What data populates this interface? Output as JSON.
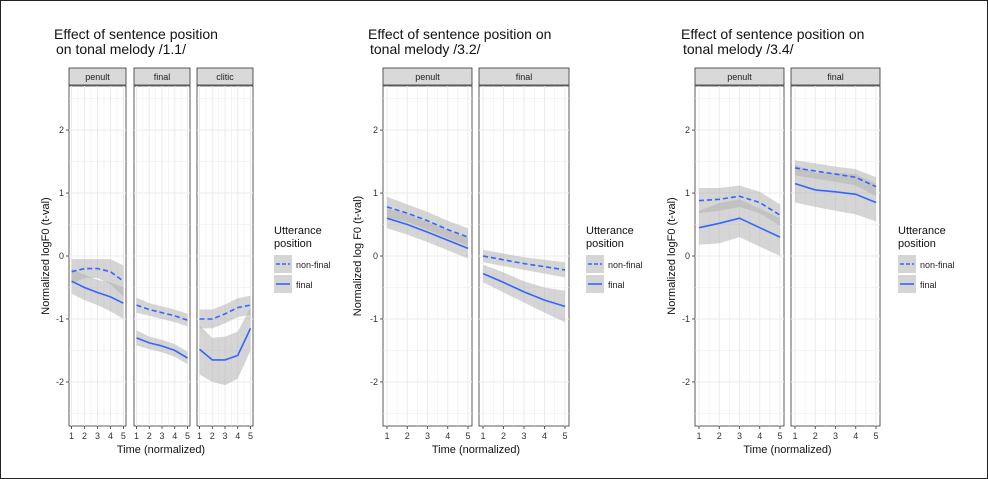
{
  "colors": {
    "line": "#3366ff",
    "ribbon": "#b3b3b3",
    "strip": "#d9d9d9",
    "panel": "#ffffff",
    "grid": "#ebebeb"
  },
  "legend": {
    "title_line1": "Utterance",
    "title_line2": "position",
    "items": [
      {
        "label": "non-final",
        "linetype": "dashed"
      },
      {
        "label": "final",
        "linetype": "solid"
      }
    ]
  },
  "chart_data": [
    {
      "type": "line",
      "title_line1": "Effect of sentence position",
      "title_line2": "on tonal melody /1.1/",
      "ylabel": "Normalized logF0 (t-val)",
      "xlabel": "Time (normalized)",
      "ylim": [
        -2.7,
        2.7
      ],
      "yticks": [
        -2,
        -1,
        0,
        1,
        2
      ],
      "xticks": [
        1,
        2,
        3,
        4,
        5
      ],
      "grid": true,
      "facets": [
        {
          "label": "penult",
          "series": [
            {
              "name": "non-final",
              "x": [
                1,
                2,
                3,
                4,
                5
              ],
              "y": [
                -0.25,
                -0.2,
                -0.2,
                -0.25,
                -0.4
              ],
              "lower": [
                -0.45,
                -0.35,
                -0.35,
                -0.45,
                -0.65
              ],
              "upper": [
                -0.05,
                -0.05,
                -0.05,
                -0.05,
                -0.15
              ]
            },
            {
              "name": "final",
              "x": [
                1,
                2,
                3,
                4,
                5
              ],
              "y": [
                -0.4,
                -0.5,
                -0.58,
                -0.65,
                -0.75
              ],
              "lower": [
                -0.6,
                -0.7,
                -0.78,
                -0.88,
                -1.0
              ],
              "upper": [
                -0.2,
                -0.3,
                -0.38,
                -0.42,
                -0.5
              ]
            }
          ]
        },
        {
          "label": "final",
          "series": [
            {
              "name": "non-final",
              "x": [
                1,
                2,
                3,
                4,
                5
              ],
              "y": [
                -0.78,
                -0.85,
                -0.9,
                -0.95,
                -1.02
              ],
              "lower": [
                -0.9,
                -0.95,
                -1.0,
                -1.05,
                -1.12
              ],
              "upper": [
                -0.66,
                -0.75,
                -0.8,
                -0.85,
                -0.92
              ]
            },
            {
              "name": "final",
              "x": [
                1,
                2,
                3,
                4,
                5
              ],
              "y": [
                -1.3,
                -1.38,
                -1.43,
                -1.5,
                -1.62
              ],
              "lower": [
                -1.42,
                -1.48,
                -1.53,
                -1.6,
                -1.72
              ],
              "upper": [
                -1.18,
                -1.28,
                -1.33,
                -1.4,
                -1.52
              ]
            }
          ]
        },
        {
          "label": "clitic",
          "series": [
            {
              "name": "non-final",
              "x": [
                1,
                2,
                3,
                4,
                5
              ],
              "y": [
                -1.0,
                -1.0,
                -0.92,
                -0.82,
                -0.78
              ],
              "lower": [
                -1.15,
                -1.15,
                -1.07,
                -0.97,
                -0.93
              ],
              "upper": [
                -0.85,
                -0.85,
                -0.77,
                -0.67,
                -0.63
              ]
            },
            {
              "name": "final",
              "x": [
                1,
                2,
                3,
                4,
                5
              ],
              "y": [
                -1.48,
                -1.65,
                -1.65,
                -1.58,
                -1.15
              ],
              "lower": [
                -1.88,
                -2.0,
                -2.05,
                -1.95,
                -1.5
              ],
              "upper": [
                -1.1,
                -1.3,
                -1.28,
                -1.2,
                -0.82
              ]
            }
          ]
        }
      ]
    },
    {
      "type": "line",
      "title_line1": "Effect of sentence position on",
      "title_line2": "tonal melody /3.2/",
      "ylabel": "Normalized log F0 (t-val)",
      "xlabel": "Time (normalized)",
      "ylim": [
        -2.7,
        2.7
      ],
      "yticks": [
        -2,
        -1,
        0,
        1,
        2
      ],
      "xticks": [
        1,
        2,
        3,
        4,
        5
      ],
      "grid": true,
      "facets": [
        {
          "label": "penult",
          "series": [
            {
              "name": "non-final",
              "x": [
                1,
                2,
                3,
                4,
                5
              ],
              "y": [
                0.78,
                0.68,
                0.56,
                0.42,
                0.3
              ],
              "lower": [
                0.62,
                0.54,
                0.42,
                0.28,
                0.16
              ],
              "upper": [
                0.94,
                0.82,
                0.7,
                0.56,
                0.44
              ]
            },
            {
              "name": "final",
              "x": [
                1,
                2,
                3,
                4,
                5
              ],
              "y": [
                0.6,
                0.5,
                0.38,
                0.25,
                0.12
              ],
              "lower": [
                0.44,
                0.34,
                0.22,
                0.09,
                -0.04
              ],
              "upper": [
                0.76,
                0.66,
                0.54,
                0.41,
                0.28
              ]
            }
          ]
        },
        {
          "label": "final",
          "series": [
            {
              "name": "non-final",
              "x": [
                1,
                2,
                3,
                4,
                5
              ],
              "y": [
                0.0,
                -0.06,
                -0.12,
                -0.17,
                -0.22
              ],
              "lower": [
                -0.1,
                -0.16,
                -0.22,
                -0.28,
                -0.34
              ],
              "upper": [
                0.1,
                0.04,
                -0.02,
                -0.06,
                -0.1
              ]
            },
            {
              "name": "final",
              "x": [
                1,
                2,
                3,
                4,
                5
              ],
              "y": [
                -0.28,
                -0.42,
                -0.57,
                -0.7,
                -0.8
              ],
              "lower": [
                -0.42,
                -0.58,
                -0.74,
                -0.9,
                -1.05
              ],
              "upper": [
                -0.14,
                -0.26,
                -0.4,
                -0.5,
                -0.55
              ]
            }
          ]
        }
      ]
    },
    {
      "type": "line",
      "title_line1": "Effect of sentence position on",
      "title_line2": "tonal melody /3.4/",
      "ylabel": "Normalized logF0 (t-val)",
      "xlabel": "Time (normalized)",
      "ylim": [
        -2.7,
        2.7
      ],
      "yticks": [
        -2,
        -1,
        0,
        1,
        2
      ],
      "xticks": [
        1,
        2,
        3,
        4,
        5
      ],
      "grid": true,
      "facets": [
        {
          "label": "penult",
          "series": [
            {
              "name": "non-final",
              "x": [
                1,
                2,
                3,
                4,
                5
              ],
              "y": [
                0.88,
                0.9,
                0.95,
                0.85,
                0.65
              ],
              "lower": [
                0.68,
                0.72,
                0.78,
                0.68,
                0.48
              ],
              "upper": [
                1.08,
                1.08,
                1.12,
                1.02,
                0.82
              ]
            },
            {
              "name": "final",
              "x": [
                1,
                2,
                3,
                4,
                5
              ],
              "y": [
                0.45,
                0.52,
                0.6,
                0.45,
                0.3
              ],
              "lower": [
                0.18,
                0.2,
                0.3,
                0.15,
                0.0
              ],
              "upper": [
                0.72,
                0.84,
                0.9,
                0.75,
                0.6
              ]
            }
          ]
        },
        {
          "label": "final",
          "series": [
            {
              "name": "non-final",
              "x": [
                1,
                2,
                3,
                4,
                5
              ],
              "y": [
                1.4,
                1.35,
                1.3,
                1.25,
                1.1
              ],
              "lower": [
                1.28,
                1.23,
                1.18,
                1.12,
                0.95
              ],
              "upper": [
                1.52,
                1.47,
                1.42,
                1.38,
                1.25
              ]
            },
            {
              "name": "final",
              "x": [
                1,
                2,
                3,
                4,
                5
              ],
              "y": [
                1.15,
                1.05,
                1.02,
                0.98,
                0.85
              ],
              "lower": [
                0.85,
                0.78,
                0.72,
                0.66,
                0.55
              ],
              "upper": [
                1.45,
                1.32,
                1.32,
                1.3,
                1.15
              ]
            }
          ]
        }
      ]
    }
  ]
}
